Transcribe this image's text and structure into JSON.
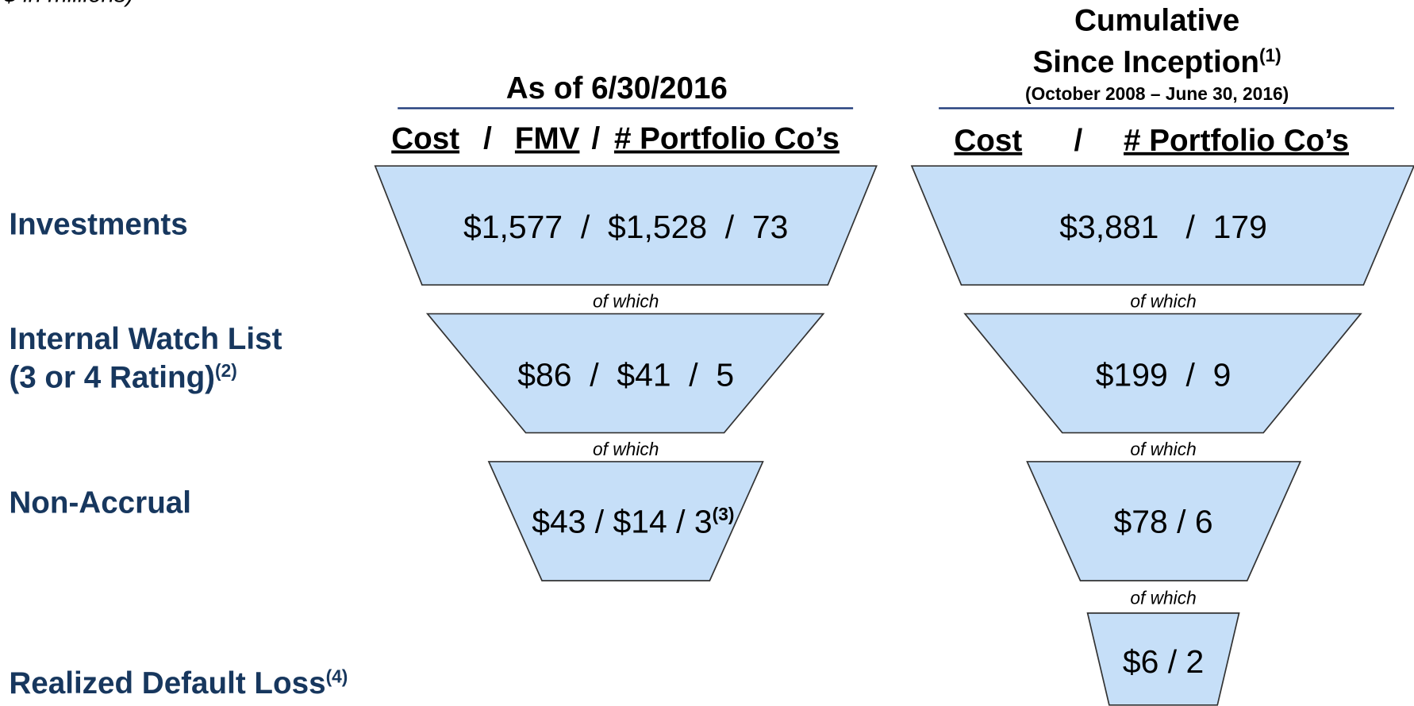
{
  "note": "$ in millions)",
  "row_labels": [
    {
      "text": "Investments"
    },
    {
      "text": "Internal Watch List",
      "text2": "(3 or 4 Rating)",
      "sup": "(2)"
    },
    {
      "text": "Non-Accrual"
    },
    {
      "text": "Realized Default Loss",
      "sup": "(4)"
    }
  ],
  "columns": [
    {
      "title": "As of 6/30/2016",
      "headers": [
        "Cost",
        "/",
        "FMV",
        "/",
        "# Portfolio Co’s"
      ],
      "cells": [
        {
          "text": "$1,577  /  $1,528  /  73"
        },
        {
          "text": "$86  /  $41  /  5"
        },
        {
          "text": "$43 / $14 / 3",
          "sup": "(3)"
        }
      ],
      "connectors": [
        "of which",
        "of which"
      ]
    },
    {
      "title": "Cumulative",
      "title2": "Since Inception",
      "title_sup": "(1)",
      "subtitle": "(October 2008 – June 30, 2016)",
      "headers": [
        "Cost",
        "/",
        "# Portfolio Co’s"
      ],
      "cells": [
        {
          "text": "$3,881   /  179"
        },
        {
          "text": "$199  /  9"
        },
        {
          "text": "$78 / 6"
        },
        {
          "text": "$6 / 2"
        }
      ],
      "connectors": [
        "of which",
        "of which",
        "of which"
      ]
    }
  ]
}
